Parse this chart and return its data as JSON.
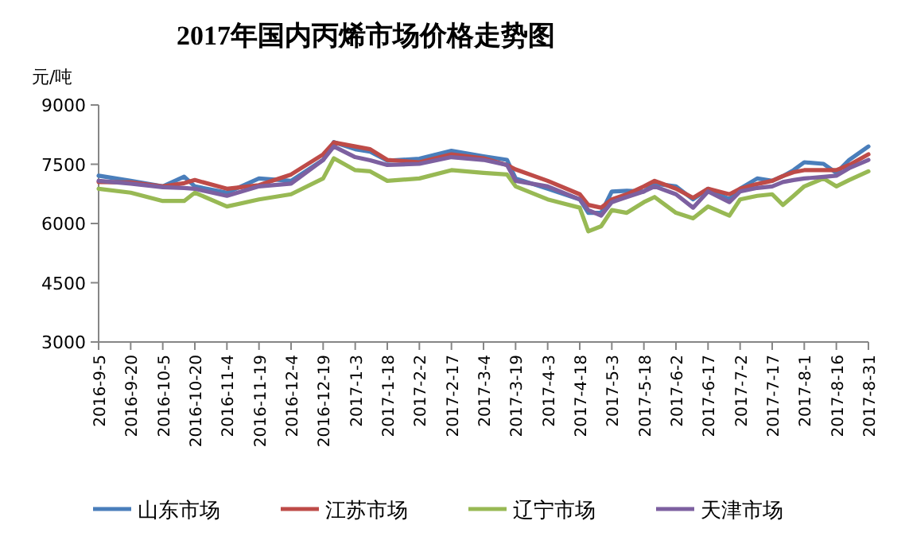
{
  "chart_data": {
    "type": "line",
    "title": "2017年国内丙烯市场价格走势图",
    "ylabel": "元/吨",
    "grid": false,
    "legend": "bottom",
    "marker": "none",
    "line_style": "solid",
    "x": [
      "2016-09-05",
      "2016-09-20",
      "2016-10-05",
      "2016-10-15",
      "2016-10-20",
      "2016-11-04",
      "2016-11-19",
      "2016-12-04",
      "2016-12-19",
      "2016-12-24",
      "2017-01-03",
      "2017-01-10",
      "2017-01-18",
      "2017-02-02",
      "2017-02-17",
      "2017-03-04",
      "2017-03-15",
      "2017-03-19",
      "2017-04-03",
      "2017-04-18",
      "2017-04-22",
      "2017-04-28",
      "2017-05-03",
      "2017-05-10",
      "2017-05-18",
      "2017-05-23",
      "2017-06-02",
      "2017-06-10",
      "2017-06-17",
      "2017-06-27",
      "2017-07-02",
      "2017-07-10",
      "2017-07-17",
      "2017-07-22",
      "2017-07-27",
      "2017-08-01",
      "2017-08-10",
      "2017-08-16",
      "2017-08-22",
      "2017-08-31"
    ],
    "xlim": [
      "2016-09-05",
      "2017-08-31"
    ],
    "xticks": [
      {
        "value": "2016-09-05",
        "label": "2016-9-5"
      },
      {
        "value": "2016-09-20",
        "label": "2016-9-20"
      },
      {
        "value": "2016-10-05",
        "label": "2016-10-5"
      },
      {
        "value": "2016-10-20",
        "label": "2016-10-20"
      },
      {
        "value": "2016-11-04",
        "label": "2016-11-4"
      },
      {
        "value": "2016-11-19",
        "label": "2016-11-19"
      },
      {
        "value": "2016-12-04",
        "label": "2016-12-4"
      },
      {
        "value": "2016-12-19",
        "label": "2016-12-19"
      },
      {
        "value": "2017-01-03",
        "label": "2017-1-3"
      },
      {
        "value": "2017-01-18",
        "label": "2017-1-18"
      },
      {
        "value": "2017-02-02",
        "label": "2017-2-2"
      },
      {
        "value": "2017-02-17",
        "label": "2017-2-17"
      },
      {
        "value": "2017-03-04",
        "label": "2017-3-4"
      },
      {
        "value": "2017-03-19",
        "label": "2017-3-19"
      },
      {
        "value": "2017-04-03",
        "label": "2017-4-3"
      },
      {
        "value": "2017-04-18",
        "label": "2017-4-18"
      },
      {
        "value": "2017-05-03",
        "label": "2017-5-3"
      },
      {
        "value": "2017-05-18",
        "label": "2017-5-18"
      },
      {
        "value": "2017-06-02",
        "label": "2017-6-2"
      },
      {
        "value": "2017-06-17",
        "label": "2017-6-17"
      },
      {
        "value": "2017-07-02",
        "label": "2017-7-2"
      },
      {
        "value": "2017-07-17",
        "label": "2017-7-17"
      },
      {
        "value": "2017-08-01",
        "label": "2017-8-1"
      },
      {
        "value": "2017-08-16",
        "label": "2017-8-16"
      },
      {
        "value": "2017-08-31",
        "label": "2017-8-31"
      }
    ],
    "ylim": [
      3000,
      9000
    ],
    "yticks": [
      3000,
      4500,
      6000,
      7500,
      9000
    ],
    "series": [
      {
        "name": "山东市场",
        "color": "#4a7ebb",
        "values": [
          7210,
          7080,
          6940,
          7185,
          6940,
          6780,
          7140,
          7080,
          7610,
          8060,
          7880,
          7820,
          7590,
          7640,
          7840,
          7700,
          7610,
          7140,
          6880,
          6610,
          6270,
          6270,
          6810,
          6830,
          6810,
          7010,
          6940,
          6610,
          6880,
          6610,
          6880,
          7140,
          7080,
          7200,
          7350,
          7550,
          7510,
          7280,
          7610,
          7950
        ]
      },
      {
        "name": "江苏市场",
        "color": "#be4b48",
        "values": [
          7050,
          7040,
          6940,
          7020,
          7100,
          6880,
          6970,
          7240,
          7750,
          8050,
          7950,
          7880,
          7610,
          7550,
          7750,
          7650,
          7480,
          7370,
          7080,
          6740,
          6470,
          6400,
          6610,
          6740,
          6940,
          7080,
          6880,
          6650,
          6880,
          6740,
          6880,
          7000,
          7080,
          7200,
          7300,
          7350,
          7350,
          7350,
          7480,
          7750
        ]
      },
      {
        "name": "辽宁市场",
        "color": "#98b954",
        "values": [
          6880,
          6780,
          6570,
          6570,
          6780,
          6430,
          6610,
          6740,
          7140,
          7650,
          7350,
          7320,
          7080,
          7140,
          7350,
          7280,
          7240,
          6940,
          6610,
          6400,
          5800,
          5930,
          6340,
          6270,
          6540,
          6670,
          6270,
          6130,
          6430,
          6200,
          6610,
          6700,
          6740,
          6470,
          6700,
          6940,
          7140,
          6940,
          7100,
          7320
        ]
      },
      {
        "name": "天津市场",
        "color": "#7d60a0",
        "values": [
          7080,
          7010,
          6920,
          6900,
          6880,
          6700,
          6940,
          7010,
          7610,
          7950,
          7680,
          7600,
          7480,
          7510,
          7680,
          7610,
          7480,
          7080,
          6940,
          6610,
          6340,
          6200,
          6540,
          6670,
          6810,
          6940,
          6740,
          6400,
          6810,
          6540,
          6810,
          6900,
          6940,
          7050,
          7100,
          7140,
          7180,
          7210,
          7400,
          7610
        ]
      }
    ]
  }
}
